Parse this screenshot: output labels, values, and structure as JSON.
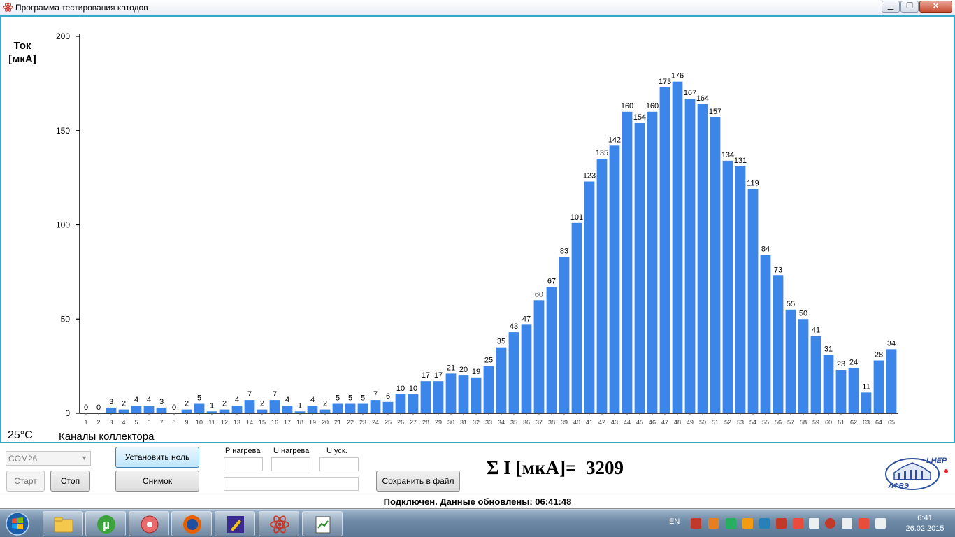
{
  "window": {
    "title": "Программа тестирования катодов"
  },
  "chart_data": {
    "type": "bar",
    "title": "",
    "ylabel": "Ток [мкА]",
    "xlabel": "Каналы коллектора",
    "ylim": [
      0,
      200
    ],
    "yticks": [
      0,
      50,
      100,
      150,
      200
    ],
    "grid": false,
    "categories": [
      "1",
      "2",
      "3",
      "4",
      "5",
      "6",
      "7",
      "8",
      "9",
      "10",
      "11",
      "12",
      "13",
      "14",
      "15",
      "16",
      "17",
      "18",
      "19",
      "20",
      "21",
      "22",
      "23",
      "24",
      "25",
      "26",
      "27",
      "28",
      "29",
      "30",
      "31",
      "32",
      "33",
      "34",
      "35",
      "36",
      "37",
      "38",
      "39",
      "40",
      "41",
      "42",
      "43",
      "44",
      "45",
      "46",
      "47",
      "48",
      "49",
      "50",
      "51",
      "52",
      "53",
      "54",
      "55",
      "56",
      "57",
      "58",
      "59",
      "60",
      "61",
      "62",
      "63",
      "64",
      "65"
    ],
    "values": [
      0,
      0,
      3,
      2,
      4,
      4,
      3,
      0,
      2,
      5,
      1,
      2,
      4,
      7,
      2,
      7,
      4,
      1,
      4,
      2,
      5,
      5,
      5,
      7,
      6,
      10,
      10,
      17,
      17,
      21,
      20,
      19,
      25,
      35,
      43,
      47,
      60,
      67,
      83,
      101,
      123,
      135,
      142,
      160,
      154,
      160,
      173,
      176,
      167,
      164,
      157,
      134,
      131,
      119,
      84,
      73,
      55,
      50,
      41,
      31,
      23,
      24,
      11,
      28,
      34
    ],
    "bar_color": "#3b86e8"
  },
  "chart_panel": {
    "temperature": "25°C"
  },
  "controls": {
    "com_port": "COM26",
    "start_label": "Старт",
    "stop_label": "Стоп",
    "set_zero_label": "Установить ноль",
    "snapshot_label": "Снимок",
    "save_label": "Сохранить в файл",
    "p_heat_label": "P нагрева",
    "u_heat_label": "U нагрева",
    "u_acc_label": "U уск.",
    "sum_label": "Σ I [мкА]=",
    "sum_value": "3209"
  },
  "logo": {
    "top_text": "LHEP",
    "bottom_text": "ЛФВЭ"
  },
  "status": {
    "text": "Подключен. Данные обновлены:  06:41:48"
  },
  "taskbar": {
    "lang": "EN",
    "time": "6:41",
    "date": "26.02.2015"
  }
}
